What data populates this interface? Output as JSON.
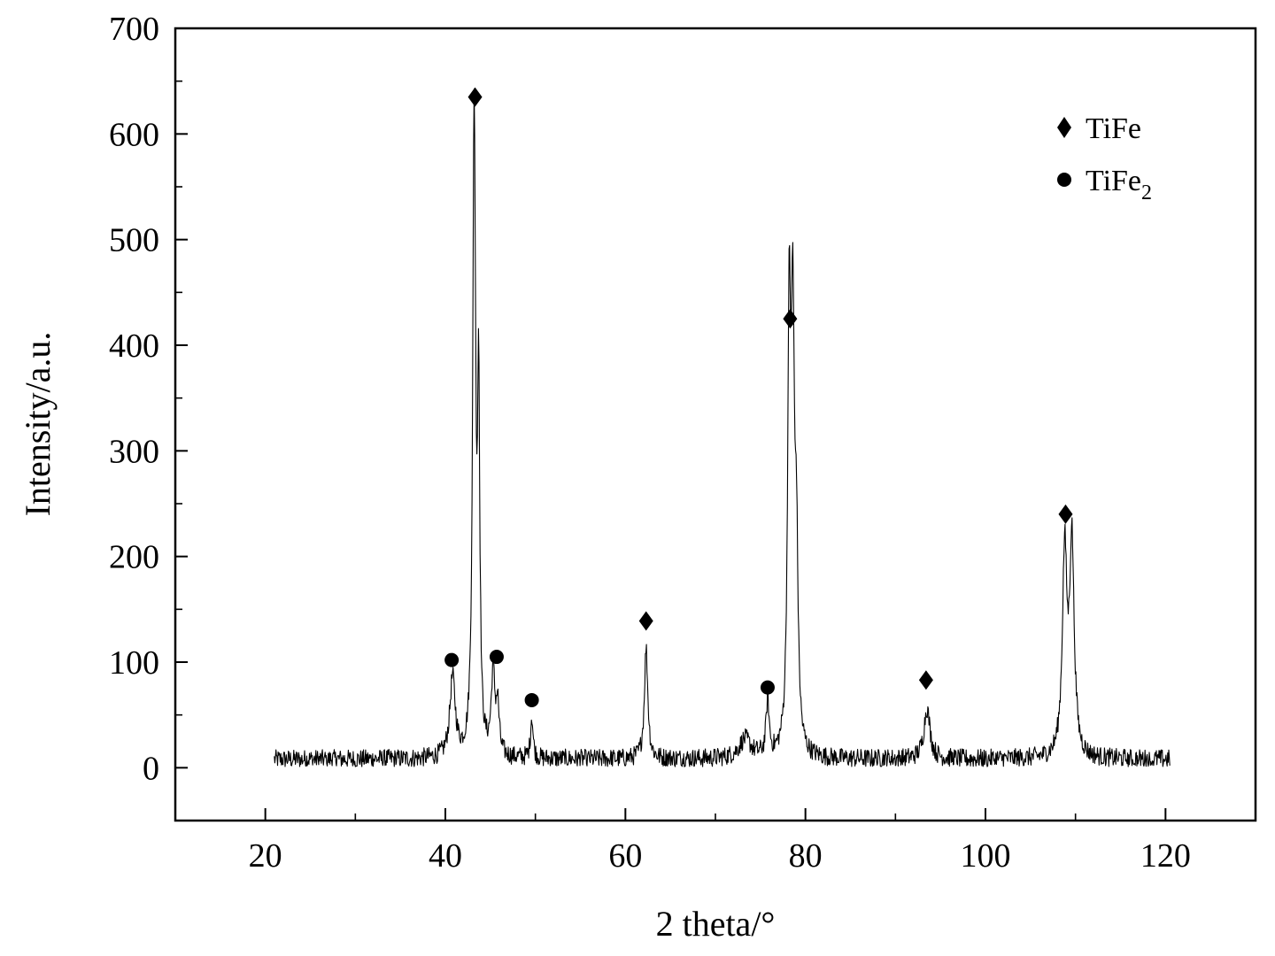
{
  "chart_data": {
    "type": "line",
    "xlabel": "2 theta/°",
    "ylabel": "Intensity/a.u.",
    "xlim": [
      10,
      130
    ],
    "ylim": [
      -50,
      700
    ],
    "x_ticks": [
      20,
      40,
      60,
      80,
      100,
      120
    ],
    "y_ticks": [
      0,
      100,
      200,
      300,
      400,
      500,
      600,
      700
    ],
    "x_tick_labels": [
      "20",
      "40",
      "60",
      "80",
      "100",
      "120"
    ],
    "y_tick_labels": [
      "0",
      "100",
      "200",
      "300",
      "400",
      "500",
      "600",
      "700"
    ],
    "grid": false,
    "line_color": "#000000",
    "legend_position": "top-right",
    "legend": [
      {
        "label": "TiFe",
        "marker": "diamond"
      },
      {
        "label": "TiFe",
        "subscript": "2",
        "marker": "circle"
      }
    ],
    "x_range": [
      21,
      120.5
    ],
    "baseline": 8,
    "noise_amplitude": 9,
    "peaks": [
      {
        "x": 40.8,
        "height": 75,
        "width": 0.55
      },
      {
        "x": 43.2,
        "height": 610,
        "width": 0.28
      },
      {
        "x": 43.7,
        "height": 330,
        "width": 0.22
      },
      {
        "x": 45.3,
        "height": 78,
        "width": 0.35
      },
      {
        "x": 45.8,
        "height": 45,
        "width": 0.3
      },
      {
        "x": 49.6,
        "height": 40,
        "width": 0.25
      },
      {
        "x": 62.3,
        "height": 105,
        "width": 0.35
      },
      {
        "x": 73.3,
        "height": 18,
        "width": 1.2
      },
      {
        "x": 75.8,
        "height": 52,
        "width": 0.3
      },
      {
        "x": 78.2,
        "height": 400,
        "width": 0.3
      },
      {
        "x": 78.6,
        "height": 370,
        "width": 0.3
      },
      {
        "x": 79.0,
        "height": 180,
        "width": 0.3
      },
      {
        "x": 93.5,
        "height": 48,
        "width": 0.6
      },
      {
        "x": 108.8,
        "height": 190,
        "width": 0.45
      },
      {
        "x": 109.6,
        "height": 200,
        "width": 0.45
      }
    ],
    "annotations": [
      {
        "x": 43.3,
        "y": 635,
        "marker": "diamond"
      },
      {
        "x": 78.3,
        "y": 425,
        "marker": "diamond"
      },
      {
        "x": 62.3,
        "y": 139,
        "marker": "diamond"
      },
      {
        "x": 93.4,
        "y": 83,
        "marker": "diamond"
      },
      {
        "x": 108.9,
        "y": 240,
        "marker": "diamond"
      },
      {
        "x": 40.7,
        "y": 102,
        "marker": "circle"
      },
      {
        "x": 45.7,
        "y": 105,
        "marker": "circle"
      },
      {
        "x": 49.6,
        "y": 64,
        "marker": "circle"
      },
      {
        "x": 75.8,
        "y": 76,
        "marker": "circle"
      }
    ]
  }
}
